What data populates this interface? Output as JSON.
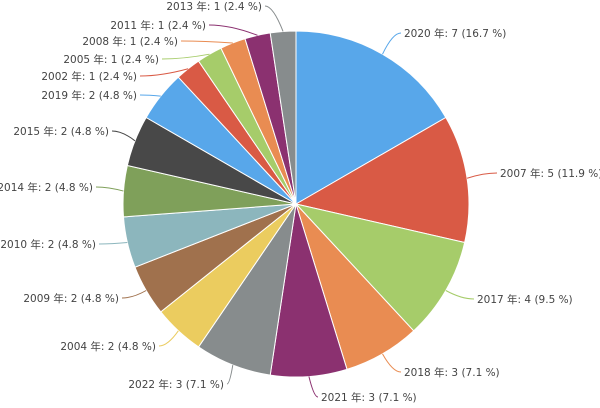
{
  "chart_data": {
    "type": "pie",
    "start": "top",
    "direction": "clockwise",
    "legend": "none",
    "grid": false,
    "slices": [
      {
        "label": "2020 年: 7 (16.7 %)",
        "category": "2020",
        "value": 7,
        "percent": 16.7,
        "color": "#58a7ea"
      },
      {
        "label": "2007 年: 5 (11.9 %)",
        "category": "2007",
        "value": 5,
        "percent": 11.9,
        "color": "#d95a45"
      },
      {
        "label": "2017 年: 4 (9.5 %)",
        "category": "2017",
        "value": 4,
        "percent": 9.5,
        "color": "#a6cc6a"
      },
      {
        "label": "2018 年: 3 (7.1 %)",
        "category": "2018",
        "value": 3,
        "percent": 7.1,
        "color": "#e98c52"
      },
      {
        "label": "2021 年: 3 (7.1 %)",
        "category": "2021",
        "value": 3,
        "percent": 7.1,
        "color": "#8b3170"
      },
      {
        "label": "2022 年: 3 (7.1 %)",
        "category": "2022",
        "value": 3,
        "percent": 7.1,
        "color": "#878c8d"
      },
      {
        "label": "2004 年: 2 (4.8 %)",
        "category": "2004",
        "value": 2,
        "percent": 4.8,
        "color": "#ebcc5f"
      },
      {
        "label": "2009 年: 2 (4.8 %)",
        "category": "2009",
        "value": 2,
        "percent": 4.8,
        "color": "#a0714d"
      },
      {
        "label": "2010 年: 2 (4.8 %)",
        "category": "2010",
        "value": 2,
        "percent": 4.8,
        "color": "#8cb6bd"
      },
      {
        "label": "2014 年: 2 (4.8 %)",
        "category": "2014",
        "value": 2,
        "percent": 4.8,
        "color": "#7fa05a"
      },
      {
        "label": "2015 年: 2 (4.8 %)",
        "category": "2015",
        "value": 2,
        "percent": 4.8,
        "color": "#484848"
      },
      {
        "label": "2019 年: 2 (4.8 %)",
        "category": "2019",
        "value": 2,
        "percent": 4.8,
        "color": "#58a7ea"
      },
      {
        "label": "2002 年: 1 (2.4 %)",
        "category": "2002",
        "value": 1,
        "percent": 2.4,
        "color": "#d95a45"
      },
      {
        "label": "2005 年: 1 (2.4 %)",
        "category": "2005",
        "value": 1,
        "percent": 2.4,
        "color": "#a6cc6a"
      },
      {
        "label": "2008 年: 1 (2.4 %)",
        "category": "2008",
        "value": 1,
        "percent": 2.4,
        "color": "#e98c52"
      },
      {
        "label": "2011 年: 1 (2.4 %)",
        "category": "2011",
        "value": 1,
        "percent": 2.4,
        "color": "#8b3170"
      },
      {
        "label": "2013 年: 1 (2.4 %)",
        "category": "2013",
        "value": 1,
        "percent": 2.4,
        "color": "#878c8d"
      }
    ]
  }
}
